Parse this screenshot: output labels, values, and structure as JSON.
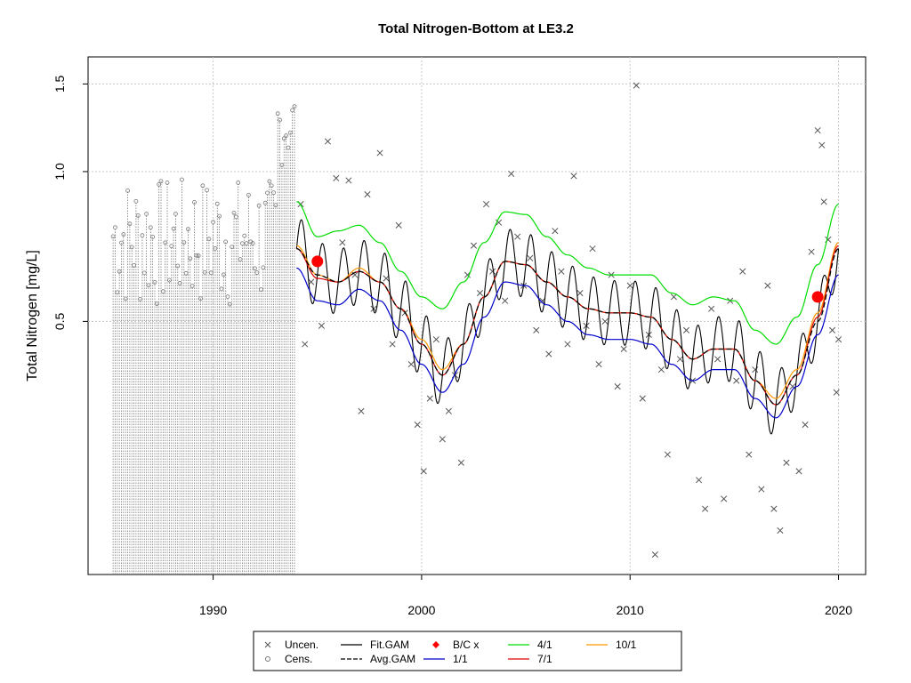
{
  "chart_data": {
    "type": "scatter",
    "title": "Total Nitrogen-Bottom at LE3.2",
    "ylabel": "Total Nitrogen [mg/L]",
    "xlabel": "",
    "xlim": [
      1984.0,
      2021.3
    ],
    "ylim_log": [
      0.155,
      1.7
    ],
    "y_scale": "log",
    "x_ticks": [
      1990,
      2000,
      2010,
      2020
    ],
    "y_ticks": [
      0.5,
      1.0,
      1.5
    ],
    "y_tick_labels": [
      "0.5",
      "1.0",
      "1.5"
    ],
    "grid": true,
    "legend_position": "bottom",
    "legend": [
      {
        "label": "Uncen.",
        "symbol": "x",
        "color": "#555555"
      },
      {
        "label": "Cens.",
        "symbol": "circle",
        "color": "#777777"
      },
      {
        "label": "Fit.GAM",
        "symbol": "line",
        "color": "#000000"
      },
      {
        "label": "Avg.GAM",
        "symbol": "dashed-line",
        "color": "#000000"
      },
      {
        "label": "B/C x",
        "symbol": "diamond",
        "color": "#ff0000"
      },
      {
        "label": "1/1",
        "symbol": "line",
        "color": "#0000cc"
      },
      {
        "label": "4/1",
        "symbol": "line",
        "color": "#00dd00"
      },
      {
        "label": "7/1",
        "symbol": "line",
        "color": "#dd0000"
      },
      {
        "label": "10/1",
        "symbol": "line",
        "color": "#ff9900"
      }
    ],
    "series": [
      {
        "name": "Avg.GAM",
        "x": [
          1994.0,
          1995.0,
          1996.0,
          1997.0,
          1998.0,
          1999.0,
          2000.0,
          2001.0,
          2002.0,
          2003.0,
          2004.0,
          2005.0,
          2006.0,
          2007.0,
          2008.0,
          2009.0,
          2010.0,
          2011.0,
          2012.0,
          2013.0,
          2014.0,
          2015.0,
          2016.0,
          2017.0,
          2018.0,
          2019.0,
          2020.0
        ],
        "values": [
          0.7,
          0.62,
          0.6,
          0.63,
          0.6,
          0.53,
          0.45,
          0.39,
          0.45,
          0.56,
          0.66,
          0.65,
          0.6,
          0.56,
          0.53,
          0.52,
          0.52,
          0.51,
          0.46,
          0.42,
          0.44,
          0.44,
          0.38,
          0.34,
          0.39,
          0.5,
          0.7
        ]
      },
      {
        "name": "4/1",
        "x": [
          1994.0,
          1995.0,
          1996.0,
          1997.0,
          1998.0,
          1999.0,
          2000.0,
          2001.0,
          2002.0,
          2003.0,
          2004.0,
          2005.0,
          2006.0,
          2007.0,
          2008.0,
          2009.0,
          2010.0,
          2011.0,
          2012.0,
          2013.0,
          2014.0,
          2015.0,
          2016.0,
          2017.0,
          2018.0,
          2019.0,
          2020.0
        ],
        "values": [
          0.87,
          0.74,
          0.76,
          0.78,
          0.72,
          0.63,
          0.56,
          0.53,
          0.6,
          0.72,
          0.83,
          0.82,
          0.74,
          0.68,
          0.64,
          0.62,
          0.62,
          0.62,
          0.57,
          0.54,
          0.56,
          0.55,
          0.48,
          0.45,
          0.51,
          0.65,
          0.86
        ]
      },
      {
        "name": "1/1",
        "x": [
          1994.0,
          1995.0,
          1996.0,
          1997.0,
          1998.0,
          1999.0,
          2000.0,
          2001.0,
          2002.0,
          2003.0,
          2004.0,
          2005.0,
          2006.0,
          2007.0,
          2008.0,
          2009.0,
          2010.0,
          2011.0,
          2012.0,
          2013.0,
          2014.0,
          2015.0,
          2016.0,
          2017.0,
          2018.0,
          2019.0,
          2020.0
        ],
        "values": [
          0.64,
          0.55,
          0.54,
          0.58,
          0.55,
          0.48,
          0.41,
          0.36,
          0.41,
          0.51,
          0.6,
          0.59,
          0.54,
          0.5,
          0.47,
          0.46,
          0.46,
          0.45,
          0.41,
          0.38,
          0.4,
          0.4,
          0.35,
          0.32,
          0.37,
          0.47,
          0.62
        ]
      },
      {
        "name": "7/1",
        "x": [
          1994.0,
          1995.0,
          1996.0,
          1997.0,
          1998.0,
          1999.0,
          2000.0,
          2001.0,
          2002.0,
          2003.0,
          2004.0,
          2005.0,
          2006.0,
          2007.0,
          2008.0,
          2009.0,
          2010.0,
          2011.0,
          2012.0,
          2013.0,
          2014.0,
          2015.0,
          2016.0,
          2017.0,
          2018.0,
          2019.0,
          2020.0
        ],
        "values": [
          0.7,
          0.61,
          0.6,
          0.63,
          0.6,
          0.53,
          0.45,
          0.39,
          0.45,
          0.56,
          0.66,
          0.65,
          0.6,
          0.56,
          0.53,
          0.52,
          0.52,
          0.51,
          0.46,
          0.42,
          0.44,
          0.44,
          0.38,
          0.34,
          0.39,
          0.51,
          0.71
        ]
      },
      {
        "name": "10/1",
        "x": [
          1994.0,
          1995.0,
          1996.0,
          1997.0,
          1998.0,
          1999.0,
          2000.0,
          2001.0,
          2002.0,
          2003.0,
          2004.0,
          2005.0,
          2006.0,
          2007.0,
          2008.0,
          2009.0,
          2010.0,
          2011.0,
          2012.0,
          2013.0,
          2014.0,
          2015.0,
          2016.0,
          2017.0,
          2018.0,
          2019.0,
          2020.0
        ],
        "values": [
          0.71,
          0.62,
          0.6,
          0.64,
          0.6,
          0.53,
          0.46,
          0.4,
          0.45,
          0.56,
          0.66,
          0.65,
          0.6,
          0.56,
          0.53,
          0.52,
          0.52,
          0.51,
          0.46,
          0.42,
          0.44,
          0.44,
          0.38,
          0.35,
          0.4,
          0.52,
          0.72
        ]
      }
    ],
    "fit_gam": {
      "baseline_series": "Avg.GAM",
      "seasonal_amplitude_log": 0.15,
      "cycles_per_year": 1,
      "x_start": 1994.0,
      "x_end": 2020.0
    },
    "bc_points": [
      {
        "x": 1995.0,
        "y": 0.66
      },
      {
        "x": 2019.0,
        "y": 0.56
      }
    ],
    "uncensored_points": [
      [
        1994.2,
        0.86
      ],
      [
        1994.4,
        0.45
      ],
      [
        1994.7,
        0.6
      ],
      [
        1995.2,
        0.49
      ],
      [
        1995.5,
        1.15
      ],
      [
        1995.9,
        0.97
      ],
      [
        1996.2,
        0.72
      ],
      [
        1996.5,
        0.96
      ],
      [
        1996.8,
        0.62
      ],
      [
        1997.1,
        0.33
      ],
      [
        1997.4,
        0.9
      ],
      [
        1997.7,
        0.53
      ],
      [
        1998.0,
        1.09
      ],
      [
        1998.3,
        0.61
      ],
      [
        1998.6,
        0.45
      ],
      [
        1998.9,
        0.78
      ],
      [
        1999.2,
        0.52
      ],
      [
        1999.5,
        0.41
      ],
      [
        1999.8,
        0.31
      ],
      [
        2000.1,
        0.25
      ],
      [
        2000.4,
        0.35
      ],
      [
        2000.7,
        0.46
      ],
      [
        2001.0,
        0.29
      ],
      [
        2001.3,
        0.33
      ],
      [
        2001.6,
        0.39
      ],
      [
        2001.9,
        0.26
      ],
      [
        2002.2,
        0.62
      ],
      [
        2002.5,
        0.71
      ],
      [
        2002.8,
        0.57
      ],
      [
        2003.1,
        0.86
      ],
      [
        2003.4,
        0.63
      ],
      [
        2003.7,
        0.79
      ],
      [
        2004.0,
        0.55
      ],
      [
        2004.3,
        0.99
      ],
      [
        2004.6,
        0.74
      ],
      [
        2004.9,
        0.59
      ],
      [
        2005.2,
        0.67
      ],
      [
        2005.5,
        0.48
      ],
      [
        2005.8,
        0.55
      ],
      [
        2006.1,
        0.43
      ],
      [
        2006.4,
        0.76
      ],
      [
        2006.7,
        0.63
      ],
      [
        2007.0,
        0.45
      ],
      [
        2007.3,
        0.98
      ],
      [
        2007.6,
        0.57
      ],
      [
        2007.9,
        0.49
      ],
      [
        2008.2,
        0.7
      ],
      [
        2008.5,
        0.41
      ],
      [
        2008.8,
        0.5
      ],
      [
        2009.1,
        0.62
      ],
      [
        2009.4,
        0.37
      ],
      [
        2009.7,
        0.44
      ],
      [
        2010.0,
        0.59
      ],
      [
        2010.3,
        1.49
      ],
      [
        2010.6,
        0.35
      ],
      [
        2010.9,
        0.47
      ],
      [
        2011.2,
        0.17
      ],
      [
        2011.5,
        0.4
      ],
      [
        2011.8,
        0.27
      ],
      [
        2012.1,
        0.56
      ],
      [
        2012.4,
        0.42
      ],
      [
        2012.7,
        0.48
      ],
      [
        2013.0,
        0.38
      ],
      [
        2013.3,
        0.24
      ],
      [
        2013.6,
        0.21
      ],
      [
        2013.9,
        0.53
      ],
      [
        2014.2,
        0.42
      ],
      [
        2014.5,
        0.22
      ],
      [
        2014.8,
        0.55
      ],
      [
        2015.1,
        0.38
      ],
      [
        2015.4,
        0.63
      ],
      [
        2015.7,
        0.27
      ],
      [
        2016.0,
        0.4
      ],
      [
        2016.3,
        0.23
      ],
      [
        2016.6,
        0.59
      ],
      [
        2016.9,
        0.21
      ],
      [
        2017.2,
        0.19
      ],
      [
        2017.5,
        0.26
      ],
      [
        2017.8,
        0.37
      ],
      [
        2018.1,
        0.25
      ],
      [
        2018.4,
        0.31
      ],
      [
        2018.7,
        0.69
      ],
      [
        2019.0,
        1.21
      ],
      [
        2019.2,
        1.13
      ],
      [
        2019.3,
        0.87
      ],
      [
        2019.5,
        0.73
      ],
      [
        2019.7,
        0.48
      ],
      [
        2019.9,
        0.36
      ],
      [
        2020.0,
        0.46
      ]
    ]
  }
}
